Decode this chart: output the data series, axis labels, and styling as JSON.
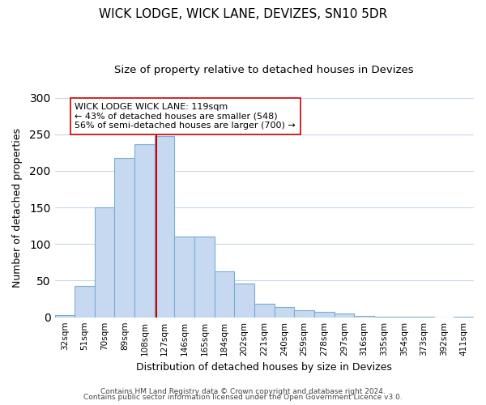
{
  "title": "WICK LODGE, WICK LANE, DEVIZES, SN10 5DR",
  "subtitle": "Size of property relative to detached houses in Devizes",
  "xlabel": "Distribution of detached houses by size in Devizes",
  "ylabel": "Number of detached properties",
  "bar_labels": [
    "32sqm",
    "51sqm",
    "70sqm",
    "89sqm",
    "108sqm",
    "127sqm",
    "146sqm",
    "165sqm",
    "184sqm",
    "202sqm",
    "221sqm",
    "240sqm",
    "259sqm",
    "278sqm",
    "297sqm",
    "316sqm",
    "335sqm",
    "354sqm",
    "373sqm",
    "392sqm",
    "411sqm"
  ],
  "bar_values": [
    3,
    43,
    150,
    218,
    236,
    247,
    110,
    110,
    63,
    46,
    19,
    14,
    10,
    7,
    5,
    2,
    1,
    1,
    1,
    0,
    1
  ],
  "bar_color": "#c6d9f0",
  "bar_edgecolor": "#7aadd4",
  "reference_line_label": "WICK LODGE WICK LANE: 119sqm",
  "annotation_smaller": "← 43% of detached houses are smaller (548)",
  "annotation_larger": "56% of semi-detached houses are larger (700) →",
  "ylim": [
    0,
    300
  ],
  "yticks": [
    0,
    50,
    100,
    150,
    200,
    250,
    300
  ],
  "footer_line1": "Contains HM Land Registry data © Crown copyright and database right 2024.",
  "footer_line2": "Contains public sector information licensed under the Open Government Licence v3.0.",
  "annotation_box_color": "#ffffff",
  "annotation_box_edgecolor": "#cc0000",
  "ref_line_color": "#cc0000",
  "background_color": "#ffffff",
  "grid_color": "#c8d8ec"
}
